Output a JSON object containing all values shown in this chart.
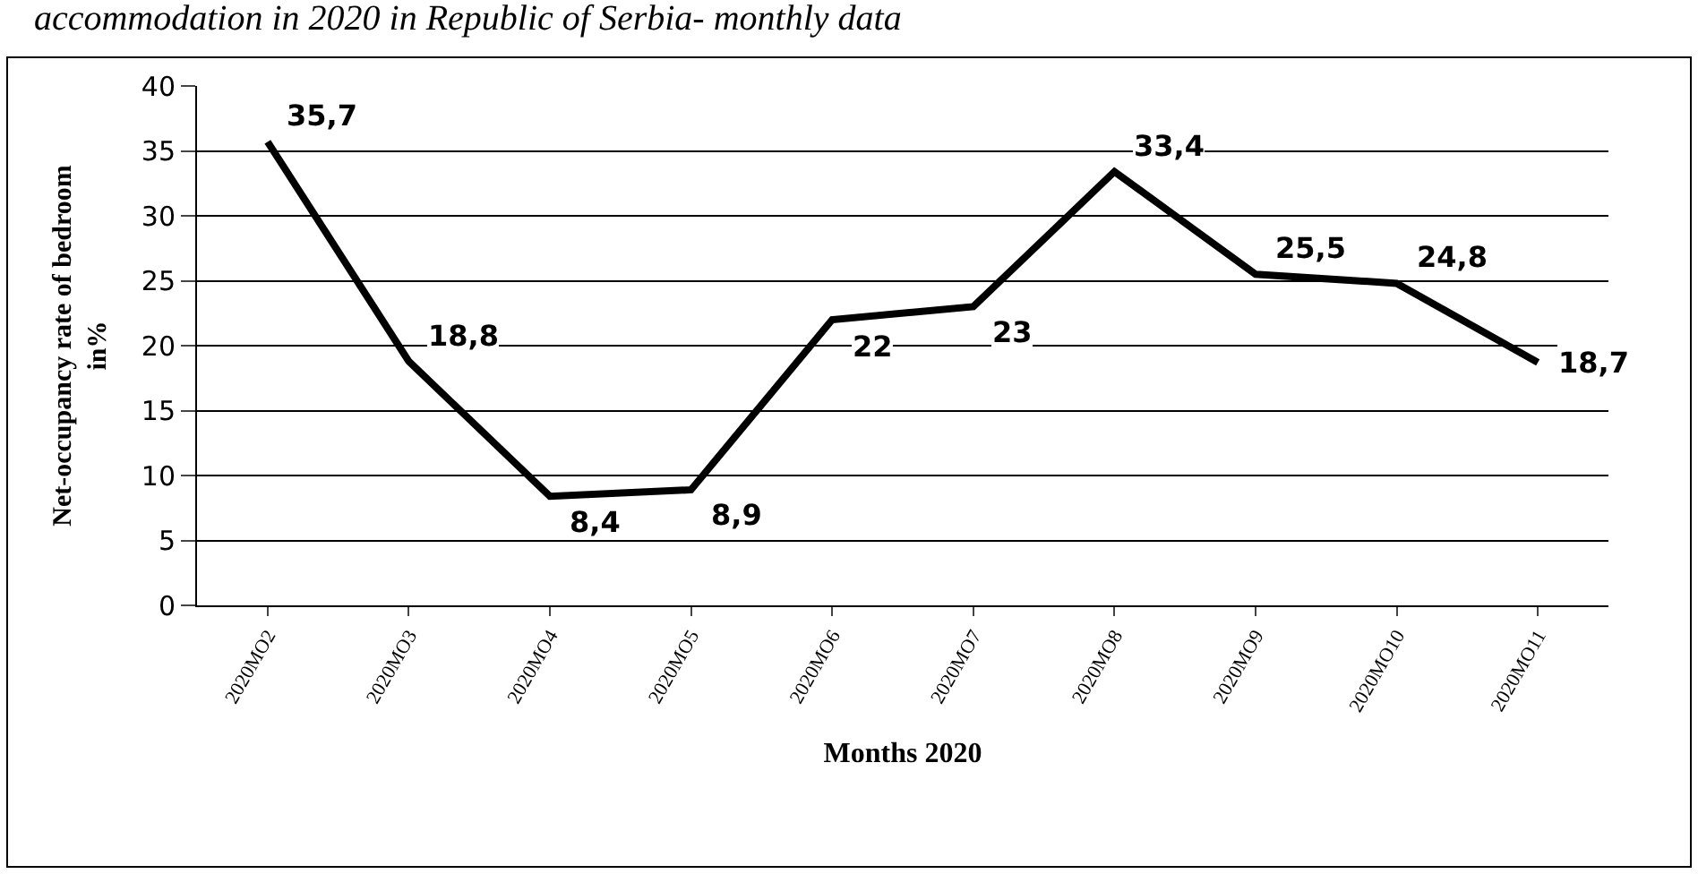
{
  "chart_data": {
    "type": "line",
    "title": "accommodation in 2020 in Republic of Serbia- monthly data",
    "xlabel": "Months 2020",
    "ylabel": "Net-occupancy rate of bedroom\nin%",
    "categories": [
      "2020MO2",
      "2020MO3",
      "2020MO4",
      "2020MO5",
      "2020MO6",
      "2020MO7",
      "2020MO8",
      "2020MO9",
      "2020MO10",
      "2020MO11"
    ],
    "series": [
      {
        "color": "#000000",
        "values": [
          35.7,
          18.8,
          8.4,
          8.9,
          22,
          23,
          33.4,
          25.5,
          24.8,
          18.7
        ],
        "value_labels": [
          "35,7",
          "18,8",
          "8,4",
          "8,9",
          "22",
          "23",
          "33,4",
          "25,5",
          "24,8",
          "18,7"
        ]
      }
    ],
    "ylim": [
      0,
      40
    ],
    "yticks": [
      0,
      5,
      10,
      15,
      20,
      25,
      30,
      35,
      40
    ],
    "grid": "y",
    "marker": "none",
    "line_style": "solid"
  }
}
